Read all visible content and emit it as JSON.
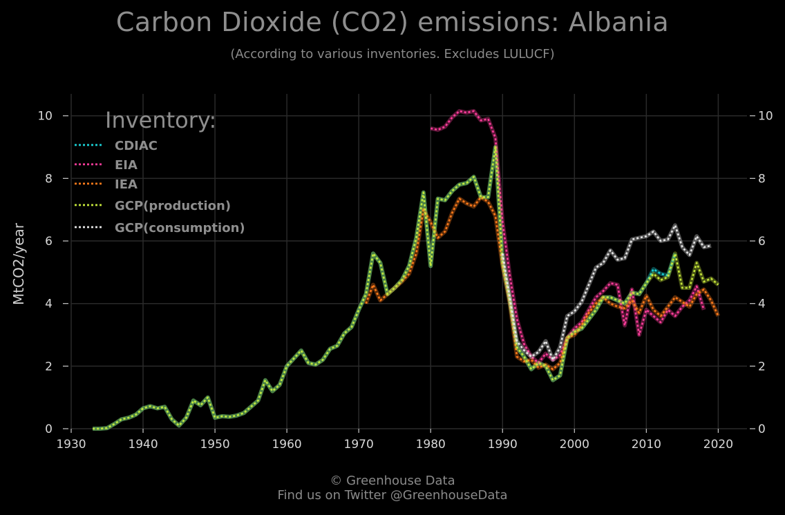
{
  "header": {
    "title": "Carbon Dioxide (CO2) emissions: Albania",
    "subtitle": "(According to various inventories. Excludes LULUCF)"
  },
  "footer": {
    "line1": "© Greenhouse Data",
    "line2": "Find us on Twitter @GreenhouseData"
  },
  "colors": {
    "background": "#000000",
    "grid": "#2a2a2a",
    "CDIAC": "#1ad1d6",
    "EIA": "#ff3d9c",
    "IEA": "#ff7a1a",
    "GCP(production)": "#c5e63a",
    "GCP(consumption)": "#e6e6e6"
  },
  "chart_data": {
    "type": "line",
    "title": "Carbon Dioxide (CO2) emissions: Albania",
    "subtitle": "(According to various inventories. Excludes LULUCF)",
    "xlabel": "",
    "ylabel": "MtCO2/year",
    "xlim": [
      1930,
      2024
    ],
    "ylim": [
      0,
      10.7
    ],
    "xticks": [
      1930,
      1940,
      1950,
      1960,
      1970,
      1980,
      1990,
      2000,
      2010,
      2020
    ],
    "yticks": [
      0,
      2,
      4,
      6,
      8,
      10
    ],
    "grid": true,
    "legend_title": "Inventory:",
    "legend_position": "top-left",
    "series": [
      {
        "name": "CDIAC",
        "color": "#1ad1d6",
        "x": [
          1933,
          1934,
          1935,
          1936,
          1937,
          1938,
          1939,
          1940,
          1941,
          1942,
          1943,
          1944,
          1945,
          1946,
          1947,
          1948,
          1949,
          1950,
          1951,
          1952,
          1953,
          1954,
          1955,
          1956,
          1957,
          1958,
          1959,
          1960,
          1961,
          1962,
          1963,
          1964,
          1965,
          1966,
          1967,
          1968,
          1969,
          1970,
          1971,
          1972,
          1973,
          1974,
          1975,
          1976,
          1977,
          1978,
          1979,
          1980,
          1981,
          1982,
          1983,
          1984,
          1985,
          1986,
          1987,
          1988,
          1989,
          1990,
          1991,
          1992,
          1993,
          1994,
          1995,
          1996,
          1997,
          1998,
          1999,
          2000,
          2001,
          2002,
          2003,
          2004,
          2005,
          2006,
          2007,
          2008,
          2009,
          2010,
          2011,
          2012,
          2013,
          2014
        ],
        "y": [
          0.0,
          0.0,
          0.02,
          0.15,
          0.3,
          0.35,
          0.45,
          0.65,
          0.72,
          0.65,
          0.7,
          0.3,
          0.1,
          0.35,
          0.9,
          0.75,
          1.0,
          0.35,
          0.4,
          0.38,
          0.42,
          0.5,
          0.7,
          0.9,
          1.55,
          1.2,
          1.4,
          2.0,
          2.25,
          2.5,
          2.1,
          2.05,
          2.2,
          2.55,
          2.65,
          3.05,
          3.25,
          3.8,
          4.3,
          5.6,
          5.3,
          4.3,
          4.5,
          4.75,
          5.2,
          6.1,
          7.55,
          5.2,
          7.35,
          7.3,
          7.6,
          7.8,
          7.85,
          8.05,
          7.4,
          7.4,
          9.0,
          5.3,
          4.1,
          2.6,
          2.3,
          1.9,
          2.1,
          2.0,
          1.55,
          1.7,
          2.9,
          3.1,
          3.2,
          3.5,
          3.8,
          4.2,
          4.2,
          4.1,
          4.0,
          4.35,
          4.3,
          4.65,
          5.1,
          4.95,
          4.9,
          5.6
        ]
      },
      {
        "name": "EIA",
        "color": "#ff3d9c",
        "x": [
          1980,
          1981,
          1982,
          1983,
          1984,
          1985,
          1986,
          1987,
          1988,
          1989,
          1990,
          1991,
          1992,
          1993,
          1994,
          1995,
          1996,
          1997,
          1998,
          1999,
          2000,
          2001,
          2002,
          2003,
          2004,
          2005,
          2006,
          2007,
          2008,
          2009,
          2010,
          2011,
          2012,
          2013,
          2014,
          2015,
          2016,
          2017,
          2018
        ],
        "y": [
          9.6,
          9.55,
          9.65,
          9.95,
          10.15,
          10.1,
          10.15,
          9.85,
          9.9,
          9.3,
          6.6,
          4.9,
          3.5,
          2.7,
          2.3,
          2.1,
          2.4,
          2.2,
          2.35,
          2.9,
          3.2,
          3.4,
          3.8,
          4.2,
          4.4,
          4.65,
          4.6,
          3.3,
          4.45,
          3.0,
          3.8,
          3.6,
          3.4,
          3.8,
          3.6,
          3.9,
          4.1,
          4.55,
          3.8
        ]
      },
      {
        "name": "IEA",
        "color": "#ff7a1a",
        "x": [
          1971,
          1972,
          1973,
          1974,
          1975,
          1976,
          1977,
          1978,
          1979,
          1980,
          1981,
          1982,
          1983,
          1984,
          1985,
          1986,
          1987,
          1988,
          1989,
          1990,
          1991,
          1992,
          1993,
          1994,
          1995,
          1996,
          1997,
          1998,
          1999,
          2000,
          2001,
          2002,
          2003,
          2004,
          2005,
          2006,
          2007,
          2008,
          2009,
          2010,
          2011,
          2012,
          2013,
          2014,
          2015,
          2016,
          2017,
          2018,
          2019,
          2020
        ],
        "y": [
          4.0,
          4.6,
          4.1,
          4.3,
          4.5,
          4.7,
          4.95,
          5.6,
          7.0,
          6.6,
          6.1,
          6.3,
          6.9,
          7.35,
          7.2,
          7.1,
          7.4,
          7.25,
          6.8,
          5.2,
          4.0,
          2.3,
          2.15,
          2.2,
          1.95,
          2.05,
          1.9,
          2.1,
          2.9,
          3.0,
          3.3,
          3.7,
          4.0,
          4.2,
          4.0,
          3.9,
          3.85,
          4.1,
          3.7,
          4.25,
          3.8,
          3.6,
          3.9,
          4.2,
          4.05,
          3.9,
          4.3,
          4.45,
          4.1,
          3.6
        ]
      },
      {
        "name": "GCP(production)",
        "color": "#c5e63a",
        "x": [
          1933,
          1934,
          1935,
          1936,
          1937,
          1938,
          1939,
          1940,
          1941,
          1942,
          1943,
          1944,
          1945,
          1946,
          1947,
          1948,
          1949,
          1950,
          1951,
          1952,
          1953,
          1954,
          1955,
          1956,
          1957,
          1958,
          1959,
          1960,
          1961,
          1962,
          1963,
          1964,
          1965,
          1966,
          1967,
          1968,
          1969,
          1970,
          1971,
          1972,
          1973,
          1974,
          1975,
          1976,
          1977,
          1978,
          1979,
          1980,
          1981,
          1982,
          1983,
          1984,
          1985,
          1986,
          1987,
          1988,
          1989,
          1990,
          1991,
          1992,
          1993,
          1994,
          1995,
          1996,
          1997,
          1998,
          1999,
          2000,
          2001,
          2002,
          2003,
          2004,
          2005,
          2006,
          2007,
          2008,
          2009,
          2010,
          2011,
          2012,
          2013,
          2014,
          2015,
          2016,
          2017,
          2018,
          2019,
          2020
        ],
        "y": [
          0.0,
          0.0,
          0.02,
          0.15,
          0.3,
          0.35,
          0.45,
          0.65,
          0.72,
          0.65,
          0.7,
          0.3,
          0.1,
          0.35,
          0.9,
          0.75,
          1.0,
          0.35,
          0.4,
          0.38,
          0.42,
          0.5,
          0.7,
          0.9,
          1.55,
          1.2,
          1.4,
          2.0,
          2.25,
          2.5,
          2.1,
          2.05,
          2.2,
          2.55,
          2.65,
          3.05,
          3.25,
          3.8,
          4.3,
          5.6,
          5.3,
          4.3,
          4.5,
          4.75,
          5.2,
          6.1,
          7.55,
          5.2,
          7.35,
          7.3,
          7.6,
          7.8,
          7.85,
          8.05,
          7.4,
          7.4,
          9.0,
          5.3,
          4.1,
          2.6,
          2.3,
          1.9,
          2.1,
          2.0,
          1.55,
          1.7,
          2.9,
          3.1,
          3.2,
          3.5,
          3.8,
          4.2,
          4.2,
          4.1,
          4.0,
          4.35,
          4.3,
          4.65,
          4.95,
          4.75,
          4.85,
          5.6,
          4.5,
          4.5,
          5.3,
          4.7,
          4.8,
          4.6
        ]
      },
      {
        "name": "GCP(consumption)",
        "color": "#e6e6e6",
        "x": [
          1990,
          1991,
          1992,
          1993,
          1994,
          1995,
          1996,
          1997,
          1998,
          1999,
          2000,
          2001,
          2002,
          2003,
          2004,
          2005,
          2006,
          2007,
          2008,
          2009,
          2010,
          2011,
          2012,
          2013,
          2014,
          2015,
          2016,
          2017,
          2018,
          2019
        ],
        "y": [
          5.6,
          4.2,
          2.8,
          2.5,
          2.3,
          2.45,
          2.8,
          2.2,
          2.6,
          3.6,
          3.75,
          4.05,
          4.6,
          5.15,
          5.3,
          5.7,
          5.4,
          5.45,
          6.05,
          6.1,
          6.15,
          6.3,
          6.0,
          6.05,
          6.5,
          5.8,
          5.55,
          6.15,
          5.8,
          5.85
        ]
      }
    ]
  }
}
